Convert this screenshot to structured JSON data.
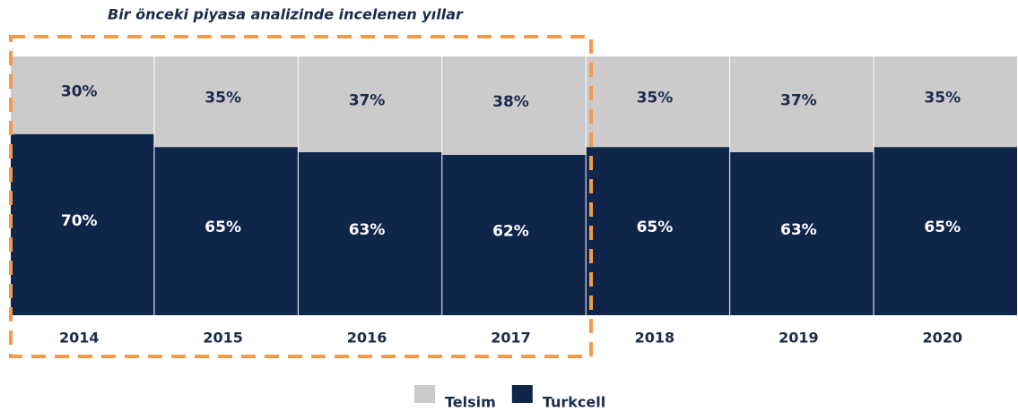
{
  "chart_data": {
    "type": "stacked_bar",
    "annotation": "Bir önceki piyasa analizinde incelenen yıllar",
    "categories": [
      "2014",
      "2015",
      "2016",
      "2017",
      "2018",
      "2019",
      "2020"
    ],
    "ylim": [
      0,
      100
    ],
    "series": [
      {
        "name": "Turkcell",
        "color": "#0f2549",
        "values": [
          70,
          65,
          63,
          62,
          65,
          63,
          65
        ],
        "value_labels": [
          "70%",
          "65%",
          "63%",
          "62%",
          "65%",
          "63%",
          "65%"
        ]
      },
      {
        "name": "Telsim",
        "color": "#cccacb",
        "values": [
          30,
          35,
          37,
          38,
          35,
          37,
          35
        ],
        "value_labels": [
          "30%",
          "35%",
          "37%",
          "38%",
          "35%",
          "37%",
          "35%"
        ]
      }
    ]
  }
}
